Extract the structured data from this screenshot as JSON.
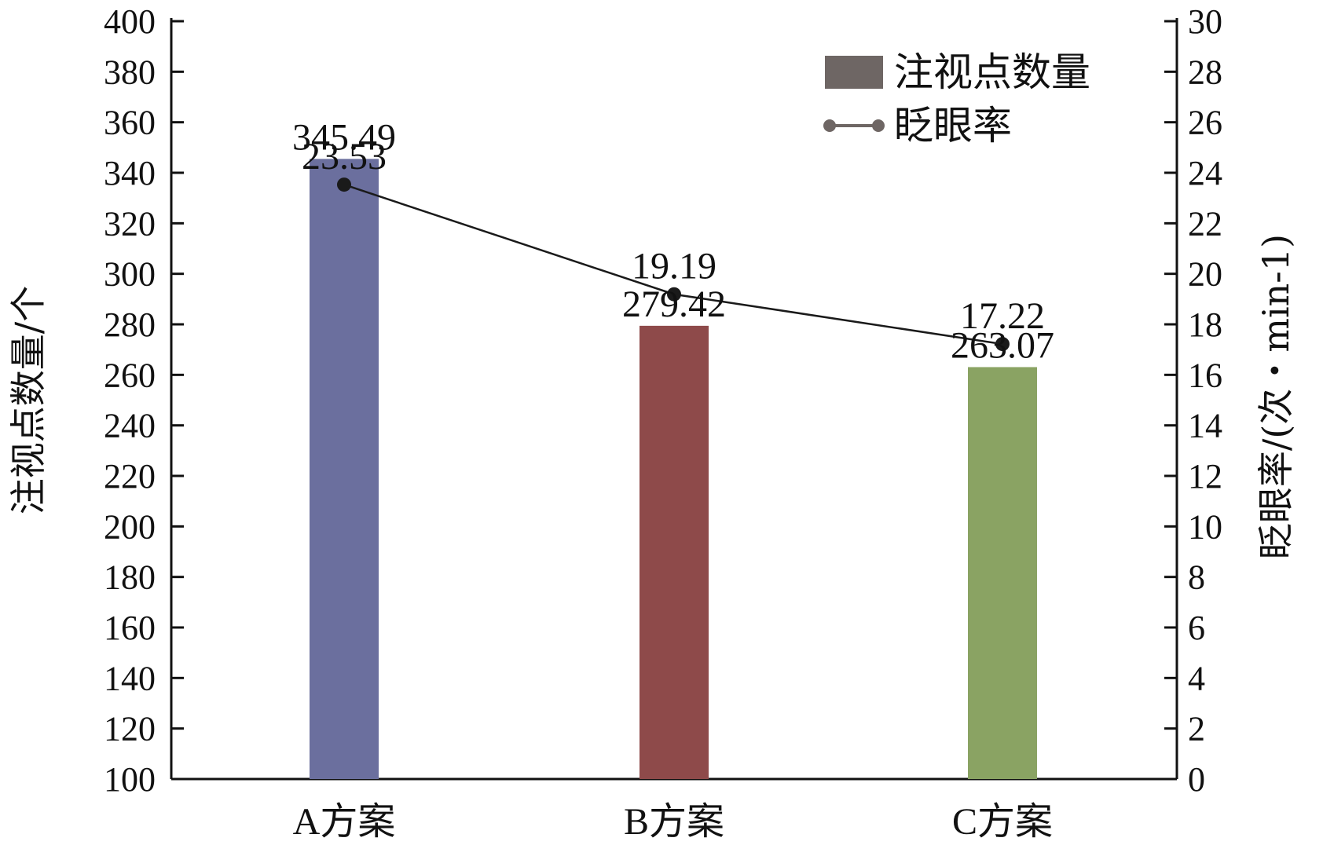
{
  "chart_data": {
    "type": "bar",
    "categories": [
      "A方案",
      "B方案",
      "C方案"
    ],
    "series": [
      {
        "name": "注视点数量",
        "type": "bar",
        "axis": "left",
        "values": [
          345.49,
          279.42,
          263.07
        ],
        "colors": [
          "#6b6f9e",
          "#8e4a4a",
          "#8aa363"
        ]
      },
      {
        "name": "眨眼率",
        "type": "line",
        "axis": "right",
        "values": [
          23.53,
          19.19,
          17.22
        ],
        "color": "#1a1a1a"
      }
    ],
    "ylabel_left": "注视点数量/个",
    "ylabel_right": "眨眼率/(次・min-1)",
    "ylim_left": [
      100,
      400
    ],
    "ytick_step_left": 20,
    "ylim_right": [
      0,
      30
    ],
    "ytick_step_right": 2,
    "legend": {
      "position": "top-right",
      "bar_swatch_color": "#6e6664",
      "line_swatch_color": "#6e6664"
    },
    "grid": false
  }
}
